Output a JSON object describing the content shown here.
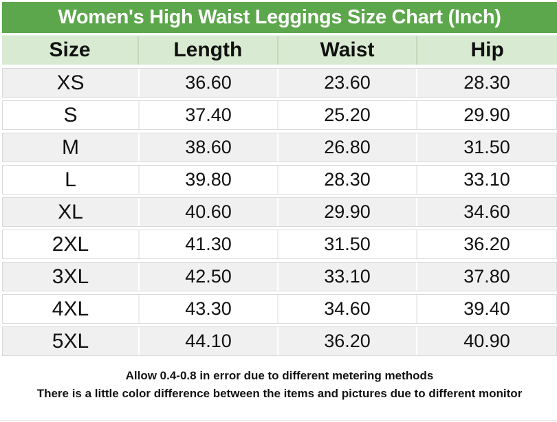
{
  "title": "Women's High Waist Leggings Size Chart (Inch)",
  "table": {
    "columns": [
      "Size",
      "Length",
      "Waist",
      "Hip"
    ],
    "rows": [
      {
        "size": "XS",
        "length": "36.60",
        "waist": "23.60",
        "hip": "28.30"
      },
      {
        "size": "S",
        "length": "37.40",
        "waist": "25.20",
        "hip": "29.90"
      },
      {
        "size": "M",
        "length": "38.60",
        "waist": "26.80",
        "hip": "31.50"
      },
      {
        "size": "L",
        "length": "39.80",
        "waist": "28.30",
        "hip": "33.10"
      },
      {
        "size": "XL",
        "length": "40.60",
        "waist": "29.90",
        "hip": "34.60"
      },
      {
        "size": "2XL",
        "length": "41.30",
        "waist": "31.50",
        "hip": "36.20"
      },
      {
        "size": "3XL",
        "length": "42.50",
        "waist": "33.10",
        "hip": "37.80"
      },
      {
        "size": "4XL",
        "length": "43.30",
        "waist": "34.60",
        "hip": "39.40"
      },
      {
        "size": "5XL",
        "length": "44.10",
        "waist": "36.20",
        "hip": "40.90"
      }
    ]
  },
  "notes": [
    "Allow 0.4-0.8 in error due to different metering methods",
    "There is a little color difference between the items and pictures due to different monitor"
  ],
  "colors": {
    "title_bg": "#5ca74b",
    "title_text": "#ffffff",
    "header_bg": "#d9ead2",
    "header_separator": "#c3d8b8",
    "row_alt_bg": "#f0f0f0",
    "row_bg": "#ffffff",
    "grid_line": "#d9d9d9",
    "body_text": "#111111"
  },
  "chart_data": {
    "type": "table",
    "title": "Women's High Waist Leggings Size Chart (Inch)",
    "units": "Inch",
    "columns": [
      "Size",
      "Length",
      "Waist",
      "Hip"
    ],
    "rows": [
      [
        "XS",
        36.6,
        23.6,
        28.3
      ],
      [
        "S",
        37.4,
        25.2,
        29.9
      ],
      [
        "M",
        38.6,
        26.8,
        31.5
      ],
      [
        "L",
        39.8,
        28.3,
        33.1
      ],
      [
        "XL",
        40.6,
        29.9,
        34.6
      ],
      [
        "2XL",
        41.3,
        31.5,
        36.2
      ],
      [
        "3XL",
        42.5,
        33.1,
        37.8
      ],
      [
        "4XL",
        43.3,
        34.6,
        39.4
      ],
      [
        "5XL",
        44.1,
        36.2,
        40.9
      ]
    ],
    "annotations": [
      "Allow 0.4-0.8 in error due to different metering methods",
      "There is a little color difference between the items and pictures due to different monitor"
    ]
  }
}
